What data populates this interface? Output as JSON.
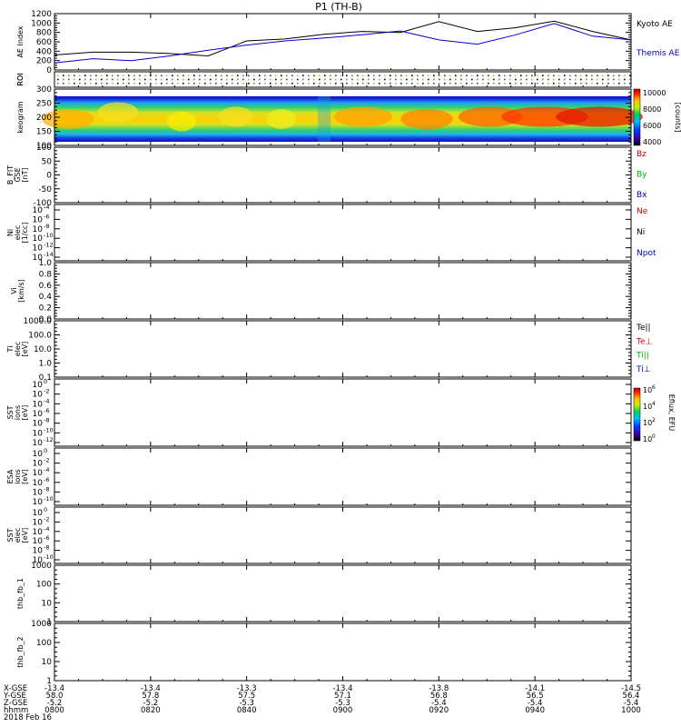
{
  "title": "P1 (TH-B)",
  "colors": {
    "kyoto": "#000000",
    "themis": "#0000cc",
    "red": "#d00000",
    "green": "#00b000",
    "blue": "#0000cc",
    "black": "#000000"
  },
  "chart_data": [
    {
      "id": "ae",
      "type": "line",
      "ylabel": "AE Index",
      "ylim": [
        0,
        1200
      ],
      "yticks": [
        "0",
        "200",
        "400",
        "600",
        "800",
        "1000",
        "1200"
      ],
      "x": [
        0,
        4,
        8,
        12,
        16,
        20,
        24,
        28,
        32,
        36,
        40,
        44,
        48,
        52,
        56,
        60
      ],
      "series": [
        {
          "name": "Kyoto AE",
          "color": "#000000",
          "values": [
            320,
            380,
            380,
            350,
            300,
            620,
            660,
            760,
            820,
            800,
            1030,
            820,
            900,
            1040,
            820,
            640
          ]
        },
        {
          "name": "Themis AE",
          "color": "#0000cc",
          "values": [
            150,
            240,
            200,
            300,
            420,
            530,
            620,
            680,
            750,
            830,
            640,
            550,
            750,
            990,
            720,
            640
          ]
        }
      ]
    },
    {
      "id": "roi",
      "type": "line",
      "ylabel": "ROI"
    },
    {
      "id": "keogram",
      "type": "heatmap",
      "ylabel": "keogram",
      "ylim": [
        100,
        300
      ],
      "yticks": [
        "100",
        "150",
        "200",
        "250",
        "300"
      ],
      "colorbar": {
        "label": "[counts]",
        "ticks": [
          "4000",
          "6000",
          "8000",
          "10000"
        ]
      }
    },
    {
      "id": "bfit",
      "type": "line",
      "ylabel_lines": [
        "B_FIT",
        "GSE",
        "[nT]"
      ],
      "ylim": [
        -100,
        100
      ],
      "yticks": [
        "-100",
        "-50",
        "0",
        "50",
        "100"
      ],
      "legend": [
        {
          "label": "Bz",
          "color": "#d00000"
        },
        {
          "label": "By",
          "color": "#00b000"
        },
        {
          "label": "Bx",
          "color": "#0000cc"
        }
      ]
    },
    {
      "id": "ni",
      "type": "line",
      "ylabel_lines": [
        "Ni",
        "elec",
        "[1/cc]"
      ],
      "yticks_mant": [
        "10",
        "10",
        "10",
        "10",
        "10",
        "10"
      ],
      "yticks_exp": [
        "-4",
        "-6",
        "-8",
        "-10",
        "-12",
        "-14"
      ],
      "legend": [
        {
          "label": "Ne",
          "color": "#d00000"
        },
        {
          "label": "Ni",
          "color": "#000000"
        },
        {
          "label": "Npot",
          "color": "#0000cc"
        }
      ]
    },
    {
      "id": "vi",
      "type": "line",
      "ylabel_lines": [
        "Vi",
        "[km/s]"
      ],
      "ylim": [
        0,
        1
      ],
      "yticks": [
        "0.0",
        "0.2",
        "0.4",
        "0.6",
        "0.8",
        "1.0"
      ]
    },
    {
      "id": "ti",
      "type": "line",
      "ylabel_lines": [
        "Ti",
        "elec",
        "[eV]"
      ],
      "yticks": [
        "0.1",
        "1.0",
        "10.0",
        "100.0",
        "1000.0"
      ],
      "legend": [
        {
          "label": "Te||",
          "color": "#000000"
        },
        {
          "label": "Te⊥",
          "color": "#d00000"
        },
        {
          "label": "Ti||",
          "color": "#00b000"
        },
        {
          "label": "Ti⊥",
          "color": "#0000cc"
        }
      ]
    },
    {
      "id": "sst1",
      "type": "heatmap",
      "ylabel_lines": [
        "SST",
        "ions",
        "[eV]"
      ],
      "yticks_mant": [
        "10",
        "10",
        "10",
        "10",
        "10",
        "10",
        "10"
      ],
      "yticks_exp": [
        "0",
        "-2",
        "-4",
        "-6",
        "-8",
        "-10",
        "-12"
      ],
      "colorbar": {
        "label": "Eflux, EFU",
        "ticks_exp": [
          "0",
          "2",
          "4",
          "6"
        ]
      }
    },
    {
      "id": "esa",
      "type": "heatmap",
      "ylabel_lines": [
        "ESA",
        "ions",
        "[eV]"
      ],
      "yticks_mant": [
        "10",
        "10",
        "10",
        "10",
        "10",
        "10"
      ],
      "yticks_exp": [
        "0",
        "-2",
        "-4",
        "-6",
        "-8",
        "-10"
      ]
    },
    {
      "id": "sst2",
      "type": "heatmap",
      "ylabel_lines": [
        "SST",
        "elec",
        "[eV]"
      ],
      "yticks_mant": [
        "10",
        "10",
        "10",
        "10",
        "10",
        "10"
      ],
      "yticks_exp": [
        "0",
        "-2",
        "-4",
        "-6",
        "-8",
        "-10"
      ]
    },
    {
      "id": "fb1",
      "type": "line",
      "ylabel": "thb_fb_1",
      "yticks": [
        "1",
        "10",
        "100",
        "1000"
      ]
    },
    {
      "id": "fb2",
      "type": "line",
      "ylabel": "thb_fb_2",
      "yticks": [
        "1",
        "10",
        "100",
        "1000"
      ]
    }
  ],
  "footer": {
    "row_labels": [
      "X-GSE",
      "Y-GSE",
      "Z-GSE",
      "hhmm",
      "2018 Feb 16"
    ],
    "columns": [
      [
        "-13.4",
        "58.0",
        "-5.2",
        "0800"
      ],
      [
        "-13.4",
        "57.8",
        "-5.2",
        "0820"
      ],
      [
        "-13.3",
        "57.5",
        "-5.3",
        "0840"
      ],
      [
        "-13.4",
        "57.1",
        "-5.3",
        "0900"
      ],
      [
        "-13.8",
        "56.8",
        "-5.4",
        "0920"
      ],
      [
        "-14.1",
        "56.5",
        "-5.4",
        "0940"
      ],
      [
        "-14.5",
        "56.4",
        "-5.4",
        "1000"
      ]
    ]
  }
}
